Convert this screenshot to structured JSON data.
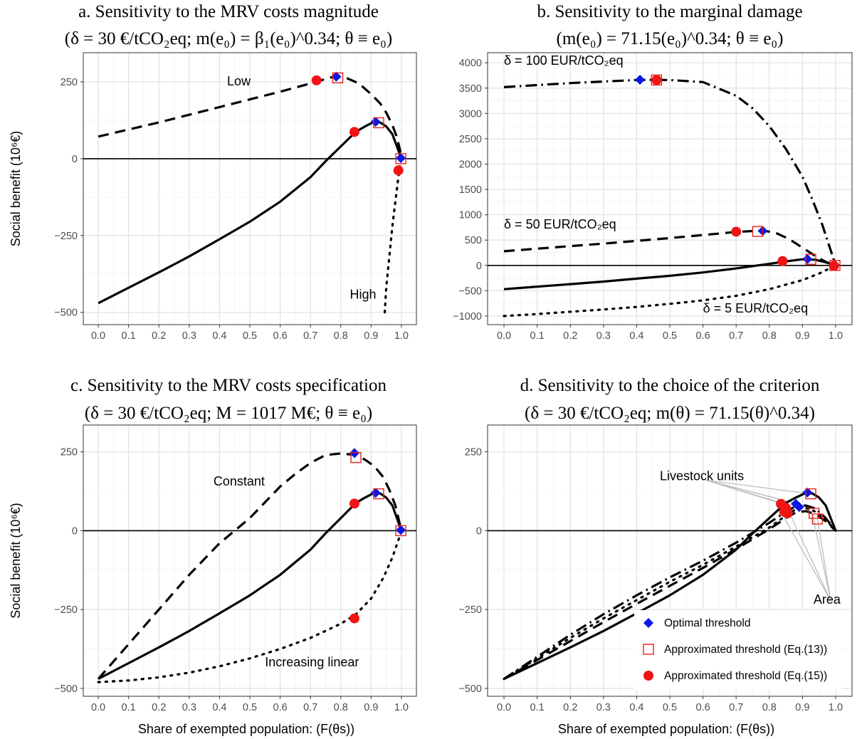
{
  "chart_data": [
    {
      "id": "a",
      "type": "line",
      "title_line1": "a. Sensitivity to the MRV costs magnitude",
      "title_line2": "(δ = 30 €/tCO₂eq; m(e₀) = β₁(e₀)^0.34; θ ≡ e₀)",
      "ylabel": "Social benefit (10⁶€)",
      "xlabel": "",
      "xlim": [
        0,
        1
      ],
      "ylim": [
        -540,
        345
      ],
      "xticks": [
        "0.0",
        "0.1",
        "0.2",
        "0.3",
        "0.4",
        "0.5",
        "0.6",
        "0.7",
        "0.8",
        "0.9",
        "1.0"
      ],
      "yticks": [
        {
          "value": 250,
          "label": "250"
        },
        {
          "value": 0,
          "label": "0"
        },
        {
          "value": -250,
          "label": "−250"
        },
        {
          "value": -500,
          "label": "−500"
        }
      ],
      "grid": true,
      "series": [
        {
          "dash": "dashed",
          "x": [
            0,
            0.1,
            0.2,
            0.3,
            0.4,
            0.5,
            0.6,
            0.7,
            0.78,
            0.82,
            0.86,
            0.9,
            0.93,
            0.95,
            0.97,
            0.985,
            0.995,
            1.0
          ],
          "y": [
            72,
            95,
            118,
            143,
            168,
            193,
            218,
            245,
            268,
            262,
            245,
            210,
            180,
            150,
            110,
            70,
            30,
            0
          ]
        },
        {
          "dash": "solid",
          "x": [
            0,
            0.1,
            0.2,
            0.3,
            0.4,
            0.5,
            0.6,
            0.7,
            0.75,
            0.8,
            0.85,
            0.88,
            0.91,
            0.93,
            0.95,
            0.97,
            0.985,
            1.0
          ],
          "y": [
            -470,
            -420,
            -370,
            -318,
            -262,
            -205,
            -140,
            -60,
            -8,
            40,
            88,
            105,
            120,
            118,
            105,
            80,
            40,
            0
          ]
        },
        {
          "dash": "dotted",
          "x": [
            0.945,
            0.95,
            0.96,
            0.97,
            0.98,
            0.99,
            0.995,
            1.0
          ],
          "y": [
            -500,
            -420,
            -320,
            -220,
            -140,
            -60,
            -20,
            0
          ]
        }
      ],
      "annotations": [
        {
          "text": "Low",
          "x": 0.425,
          "y": 238
        },
        {
          "text": "High",
          "x": 0.83,
          "y": -455
        }
      ],
      "markers": [
        {
          "kind": "diamond",
          "x": 0.785,
          "y": 267
        },
        {
          "kind": "diamond",
          "x": 0.915,
          "y": 120
        },
        {
          "kind": "diamond",
          "x": 0.998,
          "y": 2
        },
        {
          "kind": "square",
          "x": 0.79,
          "y": 263
        },
        {
          "kind": "square",
          "x": 0.925,
          "y": 117
        },
        {
          "kind": "square",
          "x": 0.998,
          "y": 0
        },
        {
          "kind": "circle",
          "x": 0.72,
          "y": 255
        },
        {
          "kind": "circle",
          "x": 0.845,
          "y": 87
        },
        {
          "kind": "circle",
          "x": 0.99,
          "y": -38
        }
      ]
    },
    {
      "id": "b",
      "type": "line",
      "title_line1": "b. Sensitivity to the marginal damage",
      "title_line2": "(m(e₀) = 71.15(e₀)^0.34; θ ≡ e₀)",
      "ylabel": "",
      "xlabel": "",
      "xlim": [
        0,
        1
      ],
      "ylim": [
        -1170,
        4200
      ],
      "xticks": [
        "0.0",
        "0.1",
        "0.2",
        "0.3",
        "0.4",
        "0.5",
        "0.6",
        "0.7",
        "0.8",
        "0.9",
        "1.0"
      ],
      "yticks": [
        {
          "value": 4000,
          "label": "4000"
        },
        {
          "value": 3500,
          "label": "3500"
        },
        {
          "value": 3000,
          "label": "3000"
        },
        {
          "value": 2500,
          "label": "2500"
        },
        {
          "value": 2000,
          "label": "2000"
        },
        {
          "value": 1500,
          "label": "1500"
        },
        {
          "value": 1000,
          "label": "1000"
        },
        {
          "value": 500,
          "label": "500"
        },
        {
          "value": 0,
          "label": "0"
        },
        {
          "value": -500,
          "label": "−500"
        },
        {
          "value": -1000,
          "label": "−1000"
        }
      ],
      "grid": true,
      "series": [
        {
          "dash": "dashdot",
          "x": [
            0,
            0.1,
            0.2,
            0.3,
            0.4,
            0.45,
            0.5,
            0.6,
            0.7,
            0.75,
            0.8,
            0.85,
            0.9,
            0.93,
            0.96,
            0.98,
            0.99,
            1.0
          ],
          "y": [
            3520,
            3560,
            3600,
            3630,
            3660,
            3665,
            3660,
            3620,
            3350,
            3100,
            2750,
            2300,
            1750,
            1300,
            800,
            400,
            200,
            0
          ]
        },
        {
          "dash": "dashed",
          "x": [
            0,
            0.1,
            0.2,
            0.3,
            0.4,
            0.5,
            0.6,
            0.7,
            0.78,
            0.82,
            0.86,
            0.9,
            0.94,
            0.97,
            1.0
          ],
          "y": [
            280,
            330,
            380,
            430,
            485,
            540,
            600,
            660,
            690,
            640,
            520,
            350,
            180,
            70,
            0
          ]
        },
        {
          "dash": "solid",
          "x": [
            0,
            0.1,
            0.2,
            0.3,
            0.4,
            0.5,
            0.6,
            0.7,
            0.8,
            0.85,
            0.9,
            0.94,
            0.97,
            1.0
          ],
          "y": [
            -470,
            -420,
            -370,
            -320,
            -262,
            -205,
            -140,
            -60,
            30,
            80,
            120,
            110,
            60,
            0
          ]
        },
        {
          "dash": "dotted",
          "x": [
            0,
            0.1,
            0.2,
            0.3,
            0.4,
            0.5,
            0.6,
            0.7,
            0.8,
            0.9,
            0.95,
            1.0
          ],
          "y": [
            -1000,
            -960,
            -915,
            -870,
            -820,
            -760,
            -690,
            -600,
            -470,
            -290,
            -160,
            0
          ]
        }
      ],
      "annotations": [
        {
          "text": "δ = 100 EUR/tCO₂eq",
          "x": 0.0,
          "y": 3960
        },
        {
          "text": "δ = 50 EUR/tCO₂eq",
          "x": 0.0,
          "y": 730
        },
        {
          "text": "δ = 5 EUR/tCO₂eq",
          "x": 0.6,
          "y": -930
        }
      ],
      "markers": [
        {
          "kind": "diamond",
          "x": 0.41,
          "y": 3665
        },
        {
          "kind": "diamond",
          "x": 0.78,
          "y": 680
        },
        {
          "kind": "diamond",
          "x": 0.915,
          "y": 125
        },
        {
          "kind": "diamond",
          "x": 0.998,
          "y": 5
        },
        {
          "kind": "square",
          "x": 0.46,
          "y": 3660
        },
        {
          "kind": "square",
          "x": 0.765,
          "y": 670
        },
        {
          "kind": "square",
          "x": 0.925,
          "y": 120
        },
        {
          "kind": "square",
          "x": 0.998,
          "y": 0
        },
        {
          "kind": "circle",
          "x": 0.46,
          "y": 3660
        },
        {
          "kind": "circle",
          "x": 0.7,
          "y": 665
        },
        {
          "kind": "circle",
          "x": 0.84,
          "y": 85
        },
        {
          "kind": "circle",
          "x": 0.995,
          "y": -10
        }
      ]
    },
    {
      "id": "c",
      "type": "line",
      "title_line1": "c. Sensitivity to the MRV costs specification",
      "title_line2": "(δ = 30 €/tCO₂eq; M = 1017 M€; θ ≡ e₀)",
      "ylabel": "Social benefit (10⁶€)",
      "xlabel": "Share of exempted population: (F(θs))",
      "xlim": [
        0,
        1
      ],
      "ylim": [
        -525,
        335
      ],
      "xticks": [
        "0.0",
        "0.1",
        "0.2",
        "0.3",
        "0.4",
        "0.5",
        "0.6",
        "0.7",
        "0.8",
        "0.9",
        "1.0"
      ],
      "yticks": [
        {
          "value": 250,
          "label": "250"
        },
        {
          "value": 0,
          "label": "0"
        },
        {
          "value": -250,
          "label": "−250"
        },
        {
          "value": -500,
          "label": "−500"
        }
      ],
      "grid": true,
      "series": [
        {
          "dash": "dashed",
          "x": [
            0,
            0.1,
            0.2,
            0.3,
            0.4,
            0.5,
            0.55,
            0.6,
            0.65,
            0.7,
            0.75,
            0.8,
            0.85,
            0.88,
            0.91,
            0.94,
            0.96,
            0.98,
            0.99,
            1.0
          ],
          "y": [
            -470,
            -360,
            -250,
            -140,
            -40,
            40,
            90,
            140,
            180,
            215,
            240,
            245,
            240,
            225,
            205,
            170,
            130,
            80,
            40,
            0
          ]
        },
        {
          "dash": "solid",
          "x": [
            0,
            0.1,
            0.2,
            0.3,
            0.4,
            0.5,
            0.6,
            0.7,
            0.75,
            0.8,
            0.85,
            0.88,
            0.91,
            0.93,
            0.95,
            0.97,
            0.985,
            1.0
          ],
          "y": [
            -470,
            -420,
            -370,
            -318,
            -262,
            -205,
            -140,
            -60,
            -8,
            40,
            88,
            105,
            120,
            118,
            105,
            80,
            40,
            0
          ]
        },
        {
          "dash": "dotted",
          "x": [
            0,
            0.1,
            0.2,
            0.3,
            0.4,
            0.5,
            0.6,
            0.7,
            0.8,
            0.85,
            0.9,
            0.94,
            0.97,
            0.99,
            1.0
          ],
          "y": [
            -480,
            -475,
            -465,
            -450,
            -430,
            -405,
            -375,
            -340,
            -295,
            -265,
            -215,
            -150,
            -85,
            -30,
            0
          ]
        }
      ],
      "annotations": [
        {
          "text": "Constant",
          "x": 0.38,
          "y": 143
        },
        {
          "text": "Increasing linear",
          "x": 0.55,
          "y": -430
        }
      ],
      "markers": [
        {
          "kind": "diamond",
          "x": 0.845,
          "y": 246
        },
        {
          "kind": "diamond",
          "x": 0.915,
          "y": 120
        },
        {
          "kind": "diamond",
          "x": 0.998,
          "y": 2
        },
        {
          "kind": "square",
          "x": 0.85,
          "y": 232
        },
        {
          "kind": "square",
          "x": 0.925,
          "y": 117
        },
        {
          "kind": "square",
          "x": 0.998,
          "y": 0
        },
        {
          "kind": "circle",
          "x": 0.845,
          "y": 86
        },
        {
          "kind": "circle",
          "x": 0.845,
          "y": -278
        }
      ]
    },
    {
      "id": "d",
      "type": "line",
      "title_line1": "d. Sensitivity to the choice of the criterion",
      "title_line2": "(δ = 30 €/tCO₂eq; m(θ) = 71.15(θ)^0.34)",
      "ylabel": "",
      "xlabel": "Share of exempted population: (F(θs))",
      "xlim": [
        0,
        1
      ],
      "ylim": [
        -525,
        335
      ],
      "xticks": [
        "0.0",
        "0.1",
        "0.2",
        "0.3",
        "0.4",
        "0.5",
        "0.6",
        "0.7",
        "0.8",
        "0.9",
        "1.0"
      ],
      "yticks": [
        {
          "value": 250,
          "label": "250"
        },
        {
          "value": 0,
          "label": "0"
        },
        {
          "value": -250,
          "label": "−250"
        },
        {
          "value": -500,
          "label": "−500"
        }
      ],
      "grid": true,
      "series": [
        {
          "dash": "solid",
          "x": [
            0,
            0.1,
            0.2,
            0.3,
            0.4,
            0.5,
            0.6,
            0.7,
            0.75,
            0.8,
            0.85,
            0.88,
            0.91,
            0.93,
            0.95,
            0.97,
            0.985,
            1.0
          ],
          "y": [
            -470,
            -420,
            -370,
            -318,
            -262,
            -205,
            -140,
            -60,
            -8,
            40,
            88,
            105,
            120,
            118,
            105,
            80,
            40,
            0
          ]
        },
        {
          "dash": "dashdot",
          "x": [
            0,
            0.1,
            0.2,
            0.3,
            0.4,
            0.5,
            0.6,
            0.7,
            0.8,
            0.85,
            0.88,
            0.91,
            0.94,
            0.97,
            1.0
          ],
          "y": [
            -470,
            -400,
            -330,
            -265,
            -205,
            -148,
            -95,
            -38,
            25,
            60,
            78,
            80,
            70,
            40,
            0
          ]
        },
        {
          "dash": "dotted",
          "x": [
            0,
            0.1,
            0.2,
            0.3,
            0.4,
            0.5,
            0.6,
            0.7,
            0.8,
            0.85,
            0.88,
            0.91,
            0.94,
            0.97,
            1.0
          ],
          "y": [
            -470,
            -405,
            -340,
            -278,
            -220,
            -162,
            -108,
            -50,
            10,
            48,
            68,
            72,
            60,
            35,
            0
          ]
        },
        {
          "dash": "dashed",
          "x": [
            0,
            0.1,
            0.2,
            0.3,
            0.4,
            0.5,
            0.6,
            0.7,
            0.8,
            0.85,
            0.88,
            0.91,
            0.94,
            0.97,
            1.0
          ],
          "y": [
            -470,
            -410,
            -350,
            -290,
            -232,
            -175,
            -118,
            -58,
            5,
            40,
            58,
            62,
            52,
            30,
            0
          ]
        }
      ],
      "annotations": [
        {
          "text": "Livestock units",
          "x": 0.47,
          "y": 160
        },
        {
          "text": "Area",
          "x": 1.015,
          "y": -232
        }
      ],
      "label_lines": {
        "livestock_from": {
          "x": 0.61,
          "y": 160
        },
        "livestock_to": [
          {
            "x": 0.83,
            "y": 88
          },
          {
            "x": 0.855,
            "y": 82
          },
          {
            "x": 0.885,
            "y": 85
          },
          {
            "x": 0.905,
            "y": 80
          },
          {
            "x": 0.915,
            "y": 118
          }
        ],
        "area_from": {
          "x": 0.985,
          "y": -222
        },
        "area_to": [
          {
            "x": 0.835,
            "y": 60
          },
          {
            "x": 0.86,
            "y": 58
          },
          {
            "x": 0.93,
            "y": 52
          },
          {
            "x": 0.945,
            "y": 40
          }
        ]
      },
      "markers": [
        {
          "kind": "diamond",
          "x": 0.915,
          "y": 121
        },
        {
          "kind": "diamond",
          "x": 0.88,
          "y": 85
        },
        {
          "kind": "diamond",
          "x": 0.89,
          "y": 75
        },
        {
          "kind": "square",
          "x": 0.925,
          "y": 117
        },
        {
          "kind": "square",
          "x": 0.935,
          "y": 55
        },
        {
          "kind": "square",
          "x": 0.945,
          "y": 37
        },
        {
          "kind": "circle",
          "x": 0.835,
          "y": 85
        },
        {
          "kind": "circle",
          "x": 0.85,
          "y": 72
        },
        {
          "kind": "circle",
          "x": 0.845,
          "y": 60
        },
        {
          "kind": "circle",
          "x": 0.855,
          "y": 55
        }
      ],
      "legend": {
        "position": "bottom-right",
        "items": [
          {
            "kind": "diamond",
            "label": "Optimal threshold"
          },
          {
            "kind": "square",
            "label": "Approximated threshold (Eq.(13))"
          },
          {
            "kind": "circle",
            "label": "Approximated threshold (Eq.(15))"
          }
        ]
      }
    }
  ],
  "colors": {
    "diamond": "#0b17e6",
    "square": "#e8211d",
    "circle": "#f01414",
    "line": "#000000",
    "grid": "#e3e3e3",
    "tick_text": "#4d4d4d"
  }
}
